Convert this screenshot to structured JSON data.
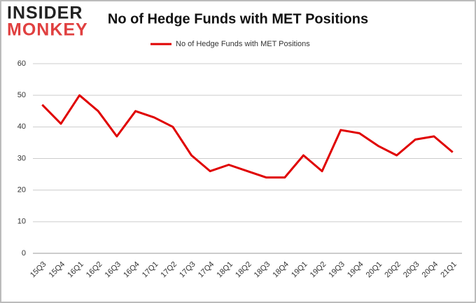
{
  "logo": {
    "line1": "INSIDER",
    "line2": "MONKEY"
  },
  "chart_data": {
    "type": "line",
    "title": "No of Hedge Funds with MET Positions",
    "categories": [
      "15Q3",
      "15Q4",
      "16Q1",
      "16Q2",
      "16Q3",
      "16Q4",
      "17Q1",
      "17Q2",
      "17Q3",
      "17Q4",
      "18Q1",
      "18Q2",
      "18Q3",
      "18Q4",
      "19Q1",
      "19Q2",
      "19Q3",
      "19Q4",
      "20Q1",
      "20Q2",
      "20Q3",
      "20Q4",
      "21Q1"
    ],
    "series": [
      {
        "name": "No of Hedge Funds with MET Positions",
        "color": "#e00000",
        "values": [
          47,
          41,
          50,
          45,
          37,
          45,
          43,
          40,
          31,
          26,
          28,
          26,
          24,
          24,
          31,
          26,
          39,
          38,
          34,
          31,
          36,
          37,
          32
        ]
      }
    ],
    "ylim": [
      0,
      60
    ],
    "yticks": [
      0,
      10,
      20,
      30,
      40,
      50,
      60
    ],
    "grid": true,
    "legend": "top"
  }
}
